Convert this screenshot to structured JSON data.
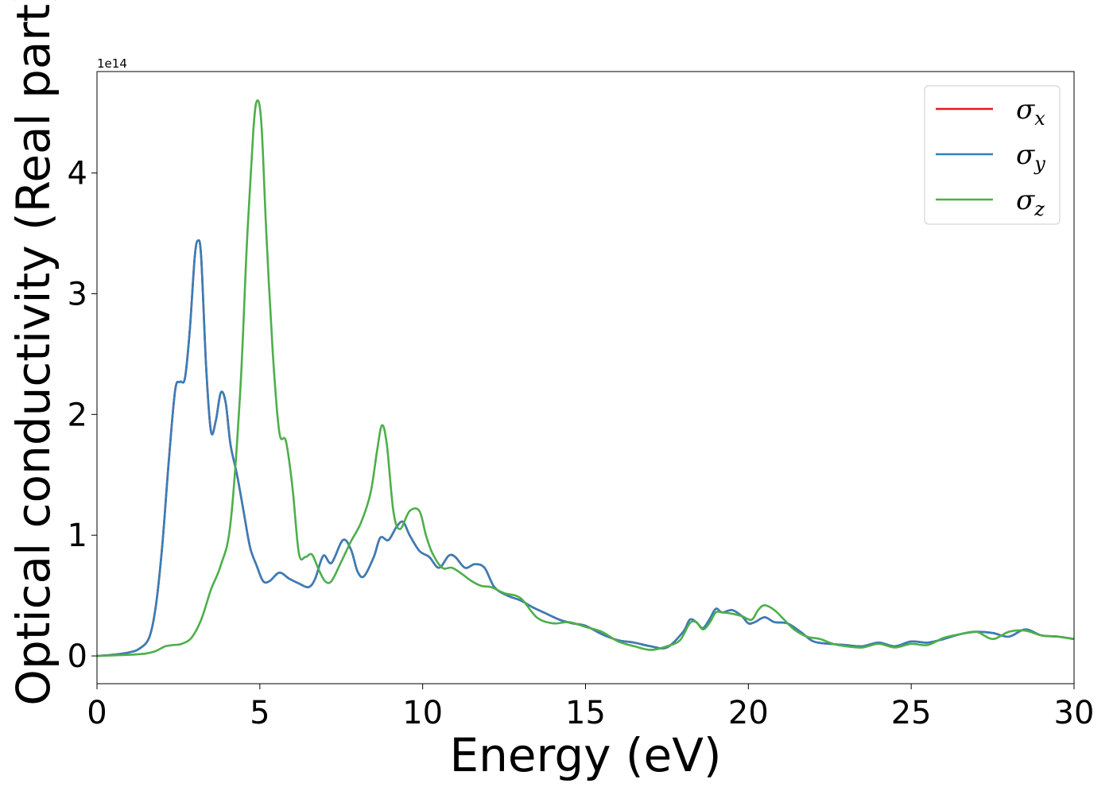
{
  "chart_data": {
    "type": "line",
    "xlabel": "Energy (eV)",
    "ylabel": "Optical conductivity (Real part)",
    "y_offset_text": "1e14",
    "xlim": [
      0,
      30
    ],
    "ylim": [
      -0.23,
      4.84
    ],
    "x_ticks": [
      0,
      5,
      10,
      15,
      20,
      25,
      30
    ],
    "y_ticks": [
      0,
      1,
      2,
      3,
      4
    ],
    "grid": false,
    "legend_position": "top-right",
    "series": [
      {
        "name_symbol": "σ",
        "name_sub": "x",
        "color": "#e41a1c",
        "x": [
          0,
          0.5,
          1.0,
          1.3,
          1.6,
          1.8,
          2.0,
          2.2,
          2.4,
          2.55,
          2.7,
          2.85,
          3.0,
          3.1,
          3.2,
          3.35,
          3.5,
          3.65,
          3.8,
          3.95,
          4.1,
          4.3,
          4.5,
          4.7,
          4.9,
          5.1,
          5.3,
          5.6,
          5.9,
          6.2,
          6.5,
          6.7,
          6.95,
          7.2,
          7.55,
          7.8,
          8.0,
          8.2,
          8.5,
          8.7,
          8.95,
          9.2,
          9.4,
          9.6,
          9.9,
          10.2,
          10.5,
          10.8,
          11.0,
          11.3,
          11.6,
          11.9,
          12.2,
          12.6,
          13.0,
          13.4,
          13.8,
          14.2,
          14.6,
          15.0,
          15.5,
          16.0,
          16.5,
          17.0,
          17.5,
          18.0,
          18.2,
          18.4,
          18.6,
          18.8,
          19.0,
          19.2,
          19.5,
          19.8,
          20.0,
          20.2,
          20.5,
          20.8,
          21.2,
          21.6,
          22.0,
          22.5,
          23.0,
          23.5,
          24.0,
          24.5,
          25.0,
          25.5,
          26.0,
          26.5,
          27.0,
          27.5,
          28.0,
          28.5,
          29.0,
          29.5,
          30.0
        ],
        "y": [
          0.0,
          0.01,
          0.03,
          0.06,
          0.15,
          0.4,
          0.9,
          1.6,
          2.2,
          2.27,
          2.3,
          2.7,
          3.3,
          3.44,
          3.3,
          2.4,
          1.86,
          1.95,
          2.18,
          2.1,
          1.75,
          1.5,
          1.2,
          0.9,
          0.75,
          0.62,
          0.62,
          0.69,
          0.64,
          0.6,
          0.57,
          0.64,
          0.83,
          0.77,
          0.96,
          0.88,
          0.7,
          0.66,
          0.82,
          0.98,
          0.96,
          1.07,
          1.11,
          1.0,
          0.87,
          0.82,
          0.73,
          0.83,
          0.82,
          0.73,
          0.76,
          0.73,
          0.57,
          0.5,
          0.46,
          0.4,
          0.35,
          0.3,
          0.27,
          0.25,
          0.18,
          0.13,
          0.11,
          0.08,
          0.07,
          0.2,
          0.3,
          0.28,
          0.23,
          0.3,
          0.39,
          0.36,
          0.38,
          0.33,
          0.27,
          0.28,
          0.32,
          0.28,
          0.27,
          0.2,
          0.12,
          0.1,
          0.09,
          0.08,
          0.11,
          0.08,
          0.12,
          0.11,
          0.14,
          0.18,
          0.2,
          0.19,
          0.16,
          0.22,
          0.17,
          0.16,
          0.14
        ]
      },
      {
        "name_symbol": "σ",
        "name_sub": "y",
        "color": "#377eb8",
        "x": [
          0,
          0.5,
          1.0,
          1.3,
          1.6,
          1.8,
          2.0,
          2.2,
          2.4,
          2.55,
          2.7,
          2.85,
          3.0,
          3.1,
          3.2,
          3.35,
          3.5,
          3.65,
          3.8,
          3.95,
          4.1,
          4.3,
          4.5,
          4.7,
          4.9,
          5.1,
          5.3,
          5.6,
          5.9,
          6.2,
          6.5,
          6.7,
          6.95,
          7.2,
          7.55,
          7.8,
          8.0,
          8.2,
          8.5,
          8.7,
          8.95,
          9.2,
          9.4,
          9.6,
          9.9,
          10.2,
          10.5,
          10.8,
          11.0,
          11.3,
          11.6,
          11.9,
          12.2,
          12.6,
          13.0,
          13.4,
          13.8,
          14.2,
          14.6,
          15.0,
          15.5,
          16.0,
          16.5,
          17.0,
          17.5,
          18.0,
          18.2,
          18.4,
          18.6,
          18.8,
          19.0,
          19.2,
          19.5,
          19.8,
          20.0,
          20.2,
          20.5,
          20.8,
          21.2,
          21.6,
          22.0,
          22.5,
          23.0,
          23.5,
          24.0,
          24.5,
          25.0,
          25.5,
          26.0,
          26.5,
          27.0,
          27.5,
          28.0,
          28.5,
          29.0,
          29.5,
          30.0
        ],
        "y": [
          0.0,
          0.01,
          0.03,
          0.06,
          0.15,
          0.4,
          0.9,
          1.6,
          2.2,
          2.27,
          2.3,
          2.7,
          3.3,
          3.44,
          3.3,
          2.4,
          1.86,
          1.95,
          2.18,
          2.1,
          1.75,
          1.5,
          1.2,
          0.9,
          0.75,
          0.62,
          0.62,
          0.69,
          0.64,
          0.6,
          0.57,
          0.64,
          0.83,
          0.77,
          0.96,
          0.88,
          0.7,
          0.66,
          0.82,
          0.98,
          0.96,
          1.07,
          1.11,
          1.0,
          0.87,
          0.82,
          0.73,
          0.83,
          0.82,
          0.73,
          0.76,
          0.73,
          0.57,
          0.5,
          0.46,
          0.4,
          0.35,
          0.3,
          0.27,
          0.25,
          0.18,
          0.13,
          0.11,
          0.08,
          0.07,
          0.2,
          0.3,
          0.28,
          0.23,
          0.3,
          0.39,
          0.36,
          0.38,
          0.33,
          0.27,
          0.28,
          0.32,
          0.28,
          0.27,
          0.2,
          0.12,
          0.1,
          0.09,
          0.08,
          0.11,
          0.08,
          0.12,
          0.11,
          0.14,
          0.18,
          0.2,
          0.19,
          0.16,
          0.22,
          0.17,
          0.16,
          0.14
        ]
      },
      {
        "name_symbol": "σ",
        "name_sub": "z",
        "color": "#4daf4a",
        "x": [
          0,
          1.0,
          1.5,
          1.8,
          2.1,
          2.35,
          2.6,
          2.9,
          3.2,
          3.5,
          3.8,
          4.1,
          4.4,
          4.6,
          4.8,
          4.92,
          5.05,
          5.2,
          5.4,
          5.6,
          5.8,
          6.0,
          6.2,
          6.4,
          6.6,
          6.8,
          7.0,
          7.2,
          7.5,
          7.8,
          8.1,
          8.4,
          8.6,
          8.75,
          8.9,
          9.1,
          9.3,
          9.6,
          9.9,
          10.1,
          10.3,
          10.6,
          10.9,
          11.2,
          11.5,
          11.8,
          12.1,
          12.5,
          13.0,
          13.5,
          14.0,
          14.5,
          15.0,
          15.5,
          16.0,
          16.5,
          17.0,
          17.5,
          17.9,
          18.2,
          18.4,
          18.6,
          18.8,
          19.0,
          19.2,
          19.5,
          19.8,
          20.1,
          20.3,
          20.5,
          20.8,
          21.1,
          21.4,
          21.8,
          22.2,
          22.6,
          23.0,
          23.5,
          24.0,
          24.5,
          25.0,
          25.5,
          26.0,
          26.5,
          27.0,
          27.5,
          28.0,
          28.5,
          29.0,
          29.5,
          30.0
        ],
        "y": [
          0.0,
          0.01,
          0.02,
          0.04,
          0.08,
          0.09,
          0.1,
          0.15,
          0.3,
          0.55,
          0.75,
          1.1,
          2.2,
          3.4,
          4.35,
          4.6,
          4.4,
          3.5,
          2.5,
          1.85,
          1.78,
          1.4,
          0.85,
          0.82,
          0.84,
          0.72,
          0.62,
          0.62,
          0.78,
          0.95,
          1.1,
          1.35,
          1.7,
          1.91,
          1.75,
          1.2,
          1.05,
          1.2,
          1.2,
          1.0,
          0.85,
          0.73,
          0.73,
          0.68,
          0.62,
          0.58,
          0.57,
          0.52,
          0.48,
          0.32,
          0.27,
          0.28,
          0.24,
          0.2,
          0.12,
          0.08,
          0.05,
          0.08,
          0.13,
          0.27,
          0.28,
          0.22,
          0.27,
          0.36,
          0.36,
          0.35,
          0.33,
          0.3,
          0.38,
          0.42,
          0.38,
          0.3,
          0.22,
          0.16,
          0.14,
          0.1,
          0.08,
          0.07,
          0.1,
          0.07,
          0.1,
          0.09,
          0.15,
          0.18,
          0.2,
          0.14,
          0.2,
          0.21,
          0.17,
          0.16,
          0.14
        ]
      }
    ]
  }
}
